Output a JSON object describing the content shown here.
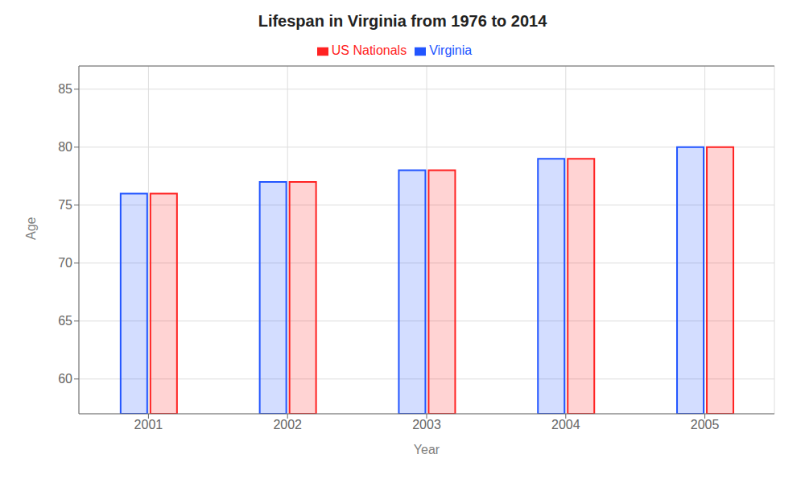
{
  "chart_data": {
    "type": "bar",
    "title": "Lifespan in Virginia from 1976 to 2014",
    "x_label": "Year",
    "y_label": "Age",
    "categories": [
      "2001",
      "2002",
      "2003",
      "2004",
      "2005"
    ],
    "series": [
      {
        "name": "Virginia",
        "color": "#2255ff",
        "values": [
          76,
          77,
          78,
          79,
          80
        ]
      },
      {
        "name": "US Nationals",
        "color": "#ff2222",
        "values": [
          76,
          77,
          78,
          79,
          80
        ]
      }
    ],
    "ylim": [
      57,
      87
    ],
    "yticks": [
      60,
      65,
      70,
      75,
      80,
      85
    ],
    "grid": true,
    "legend": "top"
  }
}
